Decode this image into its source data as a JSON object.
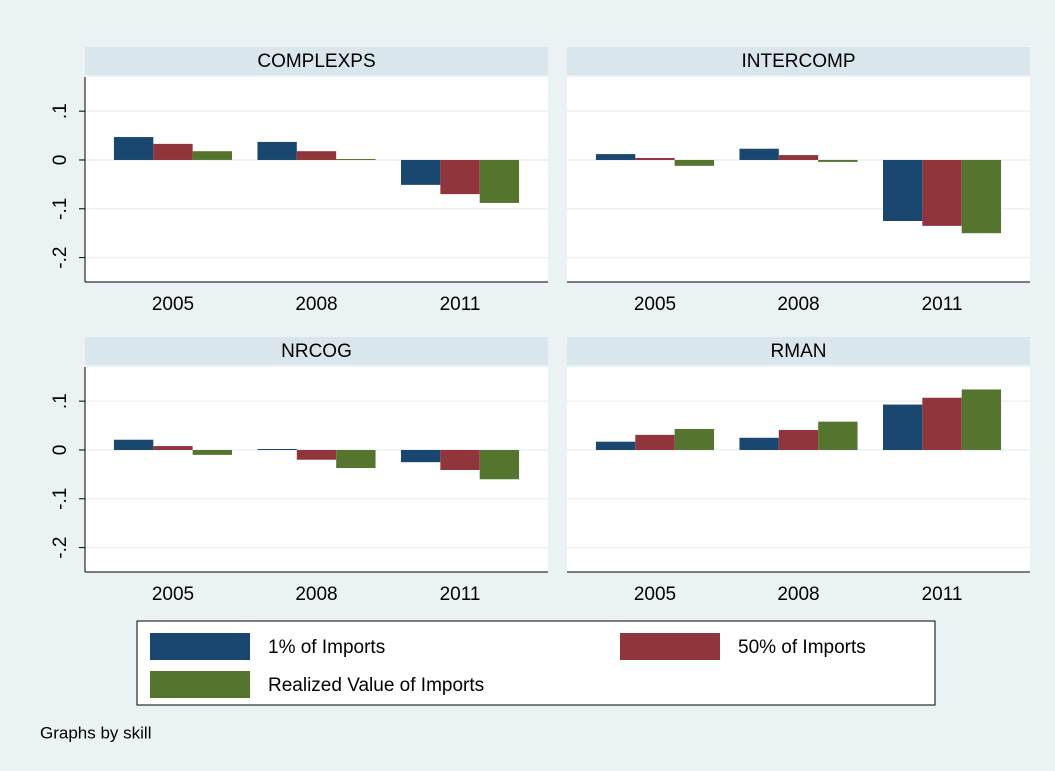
{
  "chart_data": [
    {
      "type": "bar",
      "title": "COMPLEXPS",
      "categories": [
        "2005",
        "2008",
        "2011"
      ],
      "series": [
        {
          "name": "1% of Imports",
          "color": "#1a476f",
          "values": [
            0.047,
            0.037,
            -0.051
          ]
        },
        {
          "name": "50% of Imports",
          "color": "#90353b",
          "values": [
            0.033,
            0.018,
            -0.07
          ]
        },
        {
          "name": "Realized Value of Imports",
          "color": "#55752f",
          "values": [
            0.018,
            0.002,
            -0.088
          ]
        }
      ],
      "ylim": [
        -0.25,
        0.17
      ],
      "yticks": [
        {
          "value": -0.2,
          "label": "-.2"
        },
        {
          "value": -0.1,
          "label": "-.1"
        },
        0,
        {
          "value": 0.1,
          "label": ".1"
        }
      ],
      "grid": true,
      "show_ytick_labels": true
    },
    {
      "type": "bar",
      "title": "INTERCOMP",
      "categories": [
        "2005",
        "2008",
        "2011"
      ],
      "series": [
        {
          "name": "1% of Imports",
          "color": "#1a476f",
          "values": [
            0.012,
            0.023,
            -0.125
          ]
        },
        {
          "name": "50% of Imports",
          "color": "#90353b",
          "values": [
            0.004,
            0.01,
            -0.135
          ]
        },
        {
          "name": "Realized Value of Imports",
          "color": "#55752f",
          "values": [
            -0.012,
            -0.004,
            -0.15
          ]
        }
      ],
      "ylim": [
        -0.25,
        0.17
      ],
      "yticks": [
        {
          "value": -0.2,
          "label": "-.2"
        },
        {
          "value": -0.1,
          "label": "-.1"
        },
        0,
        {
          "value": 0.1,
          "label": ".1"
        }
      ],
      "grid": true,
      "show_ytick_labels": false
    },
    {
      "type": "bar",
      "title": "NRCOG",
      "categories": [
        "2005",
        "2008",
        "2011"
      ],
      "series": [
        {
          "name": "1% of Imports",
          "color": "#1a476f",
          "values": [
            0.021,
            0.002,
            -0.025
          ]
        },
        {
          "name": "50% of Imports",
          "color": "#90353b",
          "values": [
            0.008,
            -0.02,
            -0.041
          ]
        },
        {
          "name": "Realized Value of Imports",
          "color": "#55752f",
          "values": [
            -0.01,
            -0.037,
            -0.06
          ]
        }
      ],
      "ylim": [
        -0.25,
        0.17
      ],
      "yticks": [
        {
          "value": -0.2,
          "label": "-.2"
        },
        {
          "value": -0.1,
          "label": "-.1"
        },
        0,
        {
          "value": 0.1,
          "label": ".1"
        }
      ],
      "grid": true,
      "show_ytick_labels": true
    },
    {
      "type": "bar",
      "title": "RMAN",
      "categories": [
        "2005",
        "2008",
        "2011"
      ],
      "series": [
        {
          "name": "1% of Imports",
          "color": "#1a476f",
          "values": [
            0.017,
            0.025,
            0.093
          ]
        },
        {
          "name": "50% of Imports",
          "color": "#90353b",
          "values": [
            0.031,
            0.041,
            0.107
          ]
        },
        {
          "name": "Realized Value of Imports",
          "color": "#55752f",
          "values": [
            0.043,
            0.058,
            0.124
          ]
        }
      ],
      "ylim": [
        -0.25,
        0.17
      ],
      "yticks": [
        {
          "value": -0.2,
          "label": "-.2"
        },
        {
          "value": -0.1,
          "label": "-.1"
        },
        0,
        {
          "value": 0.1,
          "label": ".1"
        }
      ],
      "grid": true,
      "show_ytick_labels": false
    }
  ],
  "note": "Graphs by skill"
}
